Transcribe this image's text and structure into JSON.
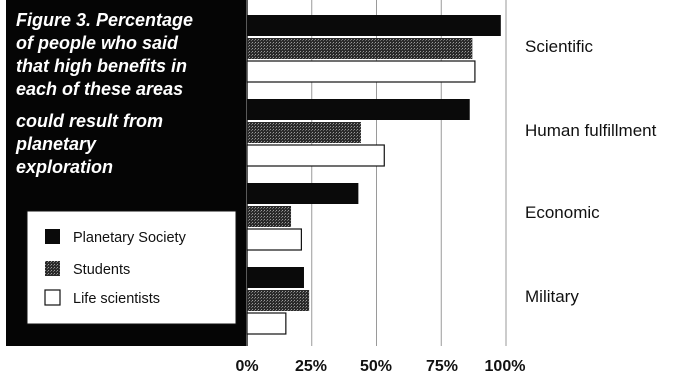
{
  "chart_data": {
    "type": "bar",
    "orientation": "horizontal",
    "title_lines": [
      "Figure 3. Percentage",
      "of people who said",
      "that high benefits in",
      "each of these areas",
      "could result from",
      "planetary",
      "exploration"
    ],
    "categories": [
      "Scientific",
      "Human fulfillment",
      "Economic",
      "Military"
    ],
    "series": [
      {
        "name": "Planetary Society",
        "values": [
          98,
          86,
          43,
          22
        ],
        "color": "#0a0a0a",
        "pattern": "solid"
      },
      {
        "name": "Students",
        "values": [
          87,
          44,
          17,
          24
        ],
        "color": "#3a3a3a",
        "pattern": "dotted-dark"
      },
      {
        "name": "Life scientists",
        "values": [
          88,
          53,
          21,
          15
        ],
        "color": "#ffffff",
        "pattern": "outline"
      }
    ],
    "xlim": [
      0,
      100
    ],
    "x_ticks": [
      "0%",
      "25%",
      "50%",
      "75%",
      "100%"
    ],
    "grid": true,
    "legend_position": "left-bottom"
  }
}
